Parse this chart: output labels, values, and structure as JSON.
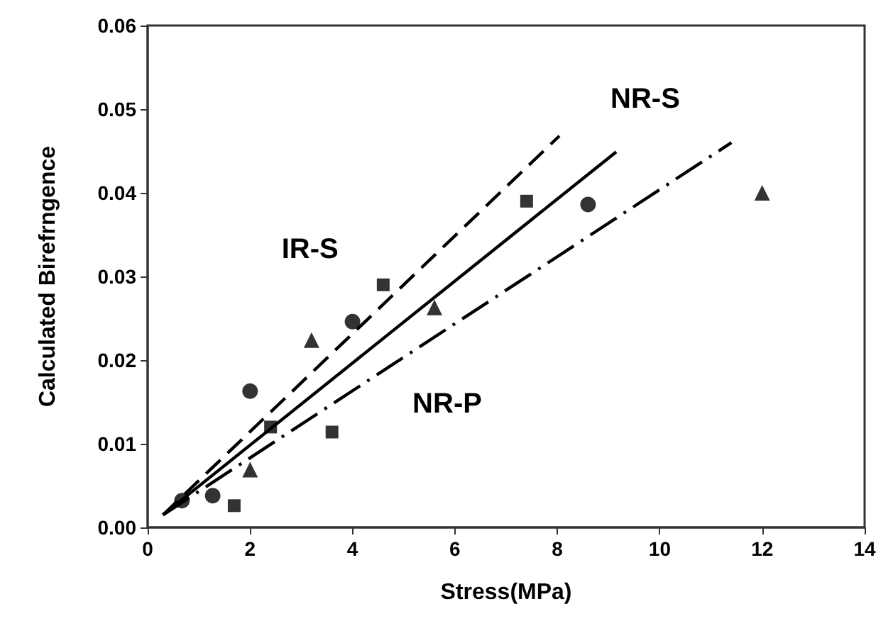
{
  "chart_data": {
    "type": "scatter",
    "xlabel": "Stress(MPa)",
    "ylabel": "Calculated Birefrngence",
    "xlim": [
      0,
      14
    ],
    "xticks": [
      0,
      2,
      4,
      6,
      8,
      10,
      12,
      14
    ],
    "ylim": [
      0,
      0.06
    ],
    "yticks": [
      {
        "value": 0,
        "label": "0.00"
      },
      {
        "value": 0.01,
        "label": "0.01"
      },
      {
        "value": 0.02,
        "label": "0.02"
      },
      {
        "value": 0.03,
        "label": "0.03"
      },
      {
        "value": 0.04,
        "label": "0.04"
      },
      {
        "value": 0.05,
        "label": "0.05"
      },
      {
        "value": 0.06,
        "label": "0.06"
      }
    ],
    "grid": false,
    "legend": false,
    "series": [
      {
        "marker": "circle",
        "color": "#000000",
        "x": [
          0.67,
          1.27,
          2.0,
          4.0,
          8.6
        ],
        "values": [
          0.0032,
          0.0038,
          0.0163,
          0.0246,
          0.0386
        ]
      },
      {
        "marker": "square",
        "color": "#000000",
        "x": [
          1.69,
          2.4,
          3.6,
          4.6,
          7.4
        ],
        "values": [
          0.0026,
          0.012,
          0.0114,
          0.029,
          0.039
        ]
      },
      {
        "marker": "triangle",
        "color": "#000000",
        "x": [
          2.0,
          3.2,
          5.6,
          12.0
        ],
        "values": [
          0.0069,
          0.0224,
          0.0263,
          0.04
        ]
      },
      {
        "type": "line",
        "name": "IR-S",
        "line_style": "dashed",
        "marker": "none",
        "color": "#000000",
        "x": [
          0.3,
          8.04
        ],
        "values": [
          0.0015,
          0.0468
        ]
      },
      {
        "type": "line",
        "name": "NR-S",
        "line_style": "solid",
        "marker": "none",
        "color": "#000000",
        "x": [
          0.3,
          9.15
        ],
        "values": [
          0.0015,
          0.0449
        ]
      },
      {
        "type": "line",
        "name": "NR-P",
        "line_style": "dashdot",
        "marker": "none",
        "color": "#000000",
        "x": [
          0.3,
          11.4
        ],
        "values": [
          0.0015,
          0.046
        ]
      }
    ]
  }
}
